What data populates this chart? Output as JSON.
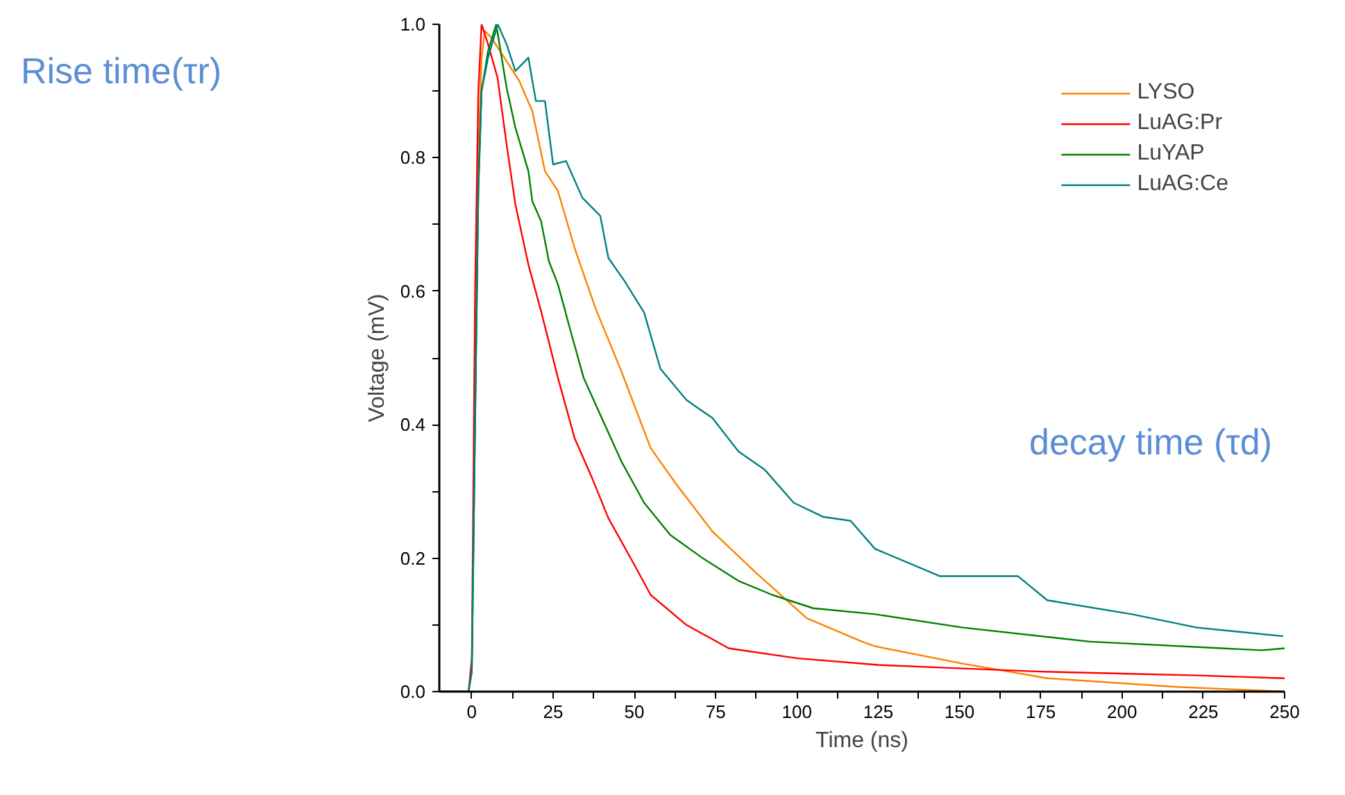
{
  "chart_data": {
    "type": "line",
    "xlabel": "Time (ns)",
    "ylabel": "Voltage (mV)",
    "xlim": [
      -10,
      250
    ],
    "ylim": [
      0,
      1.0
    ],
    "xticks": [
      0,
      {
        "value": 12.5,
        "label": null
      },
      25,
      {
        "value": 37.5,
        "label": null
      },
      50,
      {
        "value": 62.5,
        "label": null
      },
      75,
      {
        "value": 87.5,
        "label": null
      },
      100,
      {
        "value": 112.5,
        "label": null
      },
      125,
      {
        "value": 137.5,
        "label": null
      },
      150,
      {
        "value": 162.5,
        "label": null
      },
      175,
      {
        "value": 187.5,
        "label": null
      },
      200,
      {
        "value": 212.5,
        "label": null
      },
      225,
      {
        "value": 237.5,
        "label": null
      },
      250
    ],
    "yticks": [
      {
        "value": 0,
        "label": "0.0"
      },
      {
        "value": 0.1,
        "label": null
      },
      0.2,
      {
        "value": 0.3,
        "label": null
      },
      0.4,
      {
        "value": 0.5,
        "label": null
      },
      0.6,
      {
        "value": 0.7,
        "label": null
      },
      0.8,
      {
        "value": 0.9,
        "label": null
      },
      {
        "value": 1.0,
        "label": "1.0"
      }
    ],
    "grid": false,
    "legend": "top right",
    "marker": "none",
    "line_style": "solid",
    "annotations": [
      "Rise time(τr)",
      "decay time (τd)"
    ],
    "series": [
      {
        "name": "LYSO",
        "color": "#ff8000",
        "x": [
          1,
          2,
          3,
          4,
          6,
          10,
          14.6,
          18.6,
          22.5,
          26.5,
          31.6,
          38,
          46,
          55,
          63,
          74,
          87,
          103,
          120,
          124,
          151,
          177,
          217,
          250
        ],
        "values": [
          0.45,
          0.8,
          0.95,
          0.99,
          0.98,
          0.95,
          0.915,
          0.87,
          0.78,
          0.75,
          0.665,
          0.575,
          0.48,
          0.365,
          0.31,
          0.24,
          0.18,
          0.11,
          0.075,
          0.068,
          0.042,
          0.02,
          0.007,
          0.0
        ]
      },
      {
        "name": "LuAG:Pr",
        "color": "#ff0000",
        "x": [
          -10,
          -1,
          0,
          1,
          2,
          3,
          5,
          7.9,
          10.7,
          13.4,
          17.4,
          21.3,
          26.5,
          31.6,
          37,
          42,
          50,
          55,
          66,
          79,
          100,
          125,
          150,
          175,
          200,
          225,
          250
        ],
        "values": [
          0,
          0,
          0.05,
          0.6,
          0.9,
          1.0,
          0.97,
          0.92,
          0.82,
          0.73,
          0.64,
          0.57,
          0.47,
          0.38,
          0.32,
          0.26,
          0.19,
          0.145,
          0.1,
          0.065,
          0.05,
          0.04,
          0.035,
          0.03,
          0.027,
          0.024,
          0.02
        ]
      },
      {
        "name": "LuYAP",
        "color": "#008000",
        "x": [
          -10,
          -1,
          0,
          1,
          2,
          3,
          5,
          7.5,
          10.7,
          13.4,
          17.4,
          18.6,
          21.3,
          23.7,
          26.5,
          30.4,
          34.4,
          39.5,
          46,
          53,
          61,
          71,
          82,
          92.4,
          105,
          124,
          151,
          190,
          243,
          250
        ],
        "values": [
          0,
          0,
          0.03,
          0.4,
          0.75,
          0.9,
          0.96,
          1.0,
          0.905,
          0.845,
          0.78,
          0.735,
          0.705,
          0.645,
          0.61,
          0.54,
          0.47,
          0.415,
          0.345,
          0.283,
          0.235,
          0.2,
          0.166,
          0.145,
          0.125,
          0.116,
          0.096,
          0.075,
          0.062,
          0.065
        ]
      },
      {
        "name": "LuAG:Ce",
        "color": "#008080",
        "x": [
          -10,
          -1,
          0,
          1,
          2,
          3,
          5,
          8,
          10.7,
          13.4,
          17.4,
          19.7,
          22.5,
          25,
          29,
          34,
          39.5,
          42,
          47,
          53,
          58,
          66,
          74,
          82,
          90,
          99,
          108,
          116.5,
          124,
          144,
          168,
          177,
          203,
          223,
          249.6
        ],
        "values": [
          0,
          0,
          0.03,
          0.4,
          0.75,
          0.9,
          0.95,
          1.0,
          0.97,
          0.93,
          0.95,
          0.885,
          0.885,
          0.79,
          0.795,
          0.74,
          0.713,
          0.65,
          0.615,
          0.568,
          0.484,
          0.437,
          0.41,
          0.36,
          0.333,
          0.283,
          0.262,
          0.256,
          0.214,
          0.173,
          0.173,
          0.137,
          0.116,
          0.096,
          0.083
        ]
      }
    ]
  }
}
